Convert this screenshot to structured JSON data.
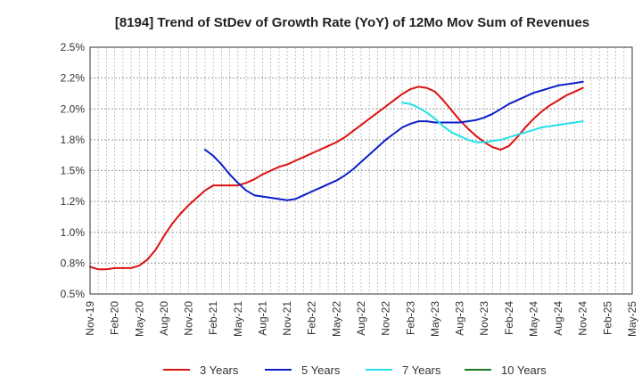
{
  "chart_data": {
    "type": "line",
    "title": "[8194]  Trend of StDev of Growth Rate (YoY) of 12Mo Mov Sum of Revenues",
    "xlabel": "",
    "ylabel": "",
    "ylim": [
      0.005,
      0.025
    ],
    "y_ticks": [
      0.005,
      0.0075,
      0.01,
      0.0125,
      0.015,
      0.0175,
      0.02,
      0.0225,
      0.025
    ],
    "y_tick_labels": [
      "0.5%",
      "0.8%",
      "1.0%",
      "1.2%",
      "1.5%",
      "1.8%",
      "2.0%",
      "2.2%",
      "2.5%"
    ],
    "x_tick_labels": [
      "Nov-19",
      "Feb-20",
      "May-20",
      "Aug-20",
      "Nov-20",
      "Feb-21",
      "May-21",
      "Aug-21",
      "Nov-21",
      "Feb-22",
      "May-22",
      "Aug-22",
      "Nov-22",
      "Feb-23",
      "May-23",
      "Aug-23",
      "Nov-23",
      "Feb-24",
      "May-24",
      "Aug-24",
      "Nov-24",
      "Feb-25",
      "May-25"
    ],
    "x_ticks": [
      0,
      3,
      6,
      9,
      12,
      15,
      18,
      21,
      24,
      27,
      30,
      33,
      36,
      39,
      42,
      45,
      48,
      51,
      54,
      57,
      60,
      63,
      66
    ],
    "xlim": [
      0,
      66
    ],
    "grid": true,
    "legend_position": "bottom",
    "series": [
      {
        "name": "3 Years",
        "color": "#dd1111",
        "x": [
          0,
          1,
          2,
          3,
          4,
          5,
          6,
          7,
          8,
          9,
          10,
          11,
          12,
          13,
          14,
          15,
          16,
          17,
          18,
          19,
          20,
          21,
          22,
          23,
          24,
          25,
          26,
          27,
          28,
          29,
          30,
          31,
          32,
          33,
          34,
          35,
          36,
          37,
          38,
          39,
          40,
          41,
          42,
          43,
          44,
          45,
          46,
          47,
          48,
          49,
          50,
          51,
          52,
          53,
          54,
          55,
          56,
          57,
          58,
          59,
          60
        ],
        "values": [
          0.0072,
          0.007,
          0.007,
          0.0071,
          0.0071,
          0.0071,
          0.0073,
          0.0078,
          0.0086,
          0.0097,
          0.0107,
          0.0115,
          0.0122,
          0.0128,
          0.0134,
          0.0138,
          0.0138,
          0.0138,
          0.0138,
          0.014,
          0.0143,
          0.0147,
          0.015,
          0.0153,
          0.0155,
          0.0158,
          0.0161,
          0.0164,
          0.0167,
          0.017,
          0.0173,
          0.0177,
          0.0182,
          0.0187,
          0.0192,
          0.0197,
          0.0202,
          0.0207,
          0.0212,
          0.0216,
          0.0218,
          0.0217,
          0.0214,
          0.0207,
          0.0199,
          0.0191,
          0.0184,
          0.0178,
          0.0173,
          0.0169,
          0.0167,
          0.017,
          0.0177,
          0.0185,
          0.0192,
          0.0198,
          0.0203,
          0.0207,
          0.0211,
          0.0214,
          0.0217
        ]
      },
      {
        "name": "5 Years",
        "color": "#0b1ec8",
        "x": [
          14,
          15,
          16,
          17,
          18,
          19,
          20,
          21,
          22,
          23,
          24,
          25,
          26,
          27,
          28,
          29,
          30,
          31,
          32,
          33,
          34,
          35,
          36,
          37,
          38,
          39,
          40,
          41,
          42,
          43,
          44,
          45,
          46,
          47,
          48,
          49,
          50,
          51,
          52,
          53,
          54,
          55,
          56,
          57,
          58,
          59,
          60
        ],
        "values": [
          0.0167,
          0.0162,
          0.0155,
          0.0147,
          0.014,
          0.0134,
          0.013,
          0.0129,
          0.0128,
          0.0127,
          0.0126,
          0.0127,
          0.013,
          0.0133,
          0.0136,
          0.0139,
          0.0142,
          0.0146,
          0.0151,
          0.0157,
          0.0163,
          0.0169,
          0.0175,
          0.018,
          0.0185,
          0.0188,
          0.019,
          0.019,
          0.0189,
          0.0189,
          0.0189,
          0.0189,
          0.019,
          0.0191,
          0.0193,
          0.0196,
          0.02,
          0.0204,
          0.0207,
          0.021,
          0.0213,
          0.0215,
          0.0217,
          0.0219,
          0.022,
          0.0221,
          0.0222
        ]
      },
      {
        "name": "7 Years",
        "color": "#22e2e6",
        "x": [
          38,
          39,
          40,
          41,
          42,
          43,
          44,
          45,
          46,
          47,
          48,
          49,
          50,
          51,
          52,
          53,
          54,
          55,
          56,
          57,
          58,
          59,
          60
        ],
        "values": [
          0.0205,
          0.0204,
          0.0201,
          0.0197,
          0.0192,
          0.0186,
          0.0181,
          0.0178,
          0.0175,
          0.0173,
          0.0173,
          0.0174,
          0.0175,
          0.0177,
          0.0179,
          0.0181,
          0.0183,
          0.0185,
          0.0186,
          0.0187,
          0.0188,
          0.0189,
          0.019
        ]
      },
      {
        "name": "10 Years",
        "color": "#1a7a1a",
        "x": [],
        "values": []
      }
    ]
  }
}
